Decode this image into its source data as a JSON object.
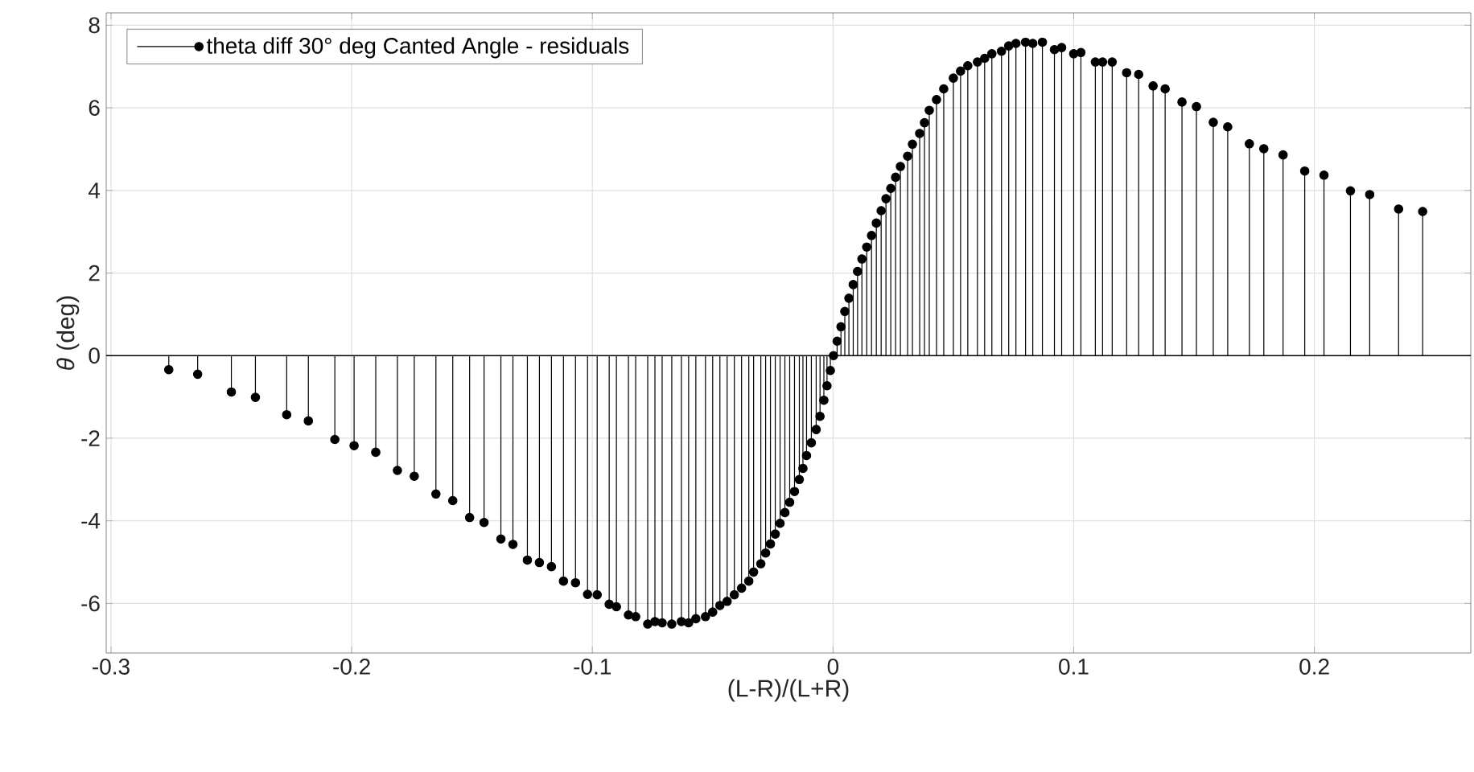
{
  "chart_data": {
    "type": "lollipop",
    "xlabel": "(L-R)/(L+R)",
    "ylabel": "*θ* (deg)",
    "xlim": [
      -0.302,
      0.265
    ],
    "ylim": [
      -7.2,
      8.3
    ],
    "xticks": [
      -0.3,
      -0.2,
      -0.1,
      0,
      0.1,
      0.2
    ],
    "yticks": [
      -6,
      -4,
      -2,
      0,
      2,
      4,
      6,
      8
    ],
    "grid": true,
    "legend": "top left",
    "marker": "circle",
    "x": [
      -0.276,
      -0.264,
      -0.25,
      -0.24,
      -0.227,
      -0.218,
      -0.207,
      -0.199,
      -0.19,
      -0.181,
      -0.174,
      -0.165,
      -0.158,
      -0.151,
      -0.145,
      -0.138,
      -0.133,
      -0.127,
      -0.122,
      -0.117,
      -0.112,
      -0.107,
      -0.102,
      -0.098,
      -0.093,
      -0.09,
      -0.085,
      -0.082,
      -0.077,
      -0.074,
      -0.071,
      -0.067,
      -0.063,
      -0.06,
      -0.057,
      -0.053,
      -0.05,
      -0.047,
      -0.044,
      -0.041,
      -0.038,
      -0.035,
      -0.033,
      -0.03,
      -0.028,
      -0.026,
      -0.024,
      -0.022,
      -0.02,
      -0.018,
      -0.016,
      -0.014,
      -0.0125,
      -0.011,
      -0.009,
      -0.007,
      -0.0054,
      -0.0038,
      -0.0025,
      -0.0011,
      0.0002,
      0.0017,
      0.0033,
      0.0049,
      0.0066,
      0.0084,
      0.0102,
      0.012,
      0.014,
      0.016,
      0.018,
      0.02,
      0.022,
      0.024,
      0.026,
      0.028,
      0.031,
      0.033,
      0.036,
      0.038,
      0.04,
      0.043,
      0.046,
      0.05,
      0.053,
      0.056,
      0.06,
      0.063,
      0.066,
      0.07,
      0.073,
      0.076,
      0.08,
      0.083,
      0.087,
      0.092,
      0.095,
      0.1,
      0.103,
      0.109,
      0.112,
      0.116,
      0.122,
      0.127,
      0.133,
      0.138,
      0.145,
      0.151,
      0.158,
      0.164,
      0.173,
      0.179,
      0.187,
      0.196,
      0.204,
      0.215,
      0.223,
      0.235,
      0.245
    ],
    "series": [
      {
        "name": "theta diff 30° deg Canted Angle - residuals",
        "color": "#000000",
        "values": [
          -0.34,
          -0.45,
          -0.88,
          -1.01,
          -1.43,
          -1.58,
          -2.03,
          -2.18,
          -2.34,
          -2.78,
          -2.92,
          -3.35,
          -3.51,
          -3.92,
          -4.04,
          -4.44,
          -4.57,
          -4.95,
          -5.01,
          -5.11,
          -5.46,
          -5.5,
          -5.78,
          -5.79,
          -6.02,
          -6.08,
          -6.28,
          -6.32,
          -6.5,
          -6.44,
          -6.47,
          -6.5,
          -6.44,
          -6.47,
          -6.37,
          -6.32,
          -6.21,
          -6.05,
          -5.95,
          -5.79,
          -5.63,
          -5.46,
          -5.24,
          -5.04,
          -4.78,
          -4.56,
          -4.32,
          -4.06,
          -3.8,
          -3.55,
          -3.29,
          -3.0,
          -2.73,
          -2.42,
          -2.11,
          -1.79,
          -1.47,
          -1.08,
          -0.73,
          -0.36,
          0.0,
          0.35,
          0.7,
          1.07,
          1.39,
          1.72,
          2.04,
          2.34,
          2.63,
          2.91,
          3.21,
          3.51,
          3.8,
          4.05,
          4.32,
          4.58,
          4.83,
          5.12,
          5.38,
          5.64,
          5.94,
          6.2,
          6.46,
          6.72,
          6.89,
          7.02,
          7.11,
          7.2,
          7.31,
          7.37,
          7.5,
          7.56,
          7.59,
          7.56,
          7.59,
          7.41,
          7.46,
          7.31,
          7.34,
          7.11,
          7.11,
          7.11,
          6.85,
          6.81,
          6.53,
          6.46,
          6.14,
          6.03,
          5.65,
          5.54,
          5.13,
          5.01,
          4.86,
          4.47,
          4.37,
          3.99,
          3.9,
          3.55,
          3.49
        ]
      }
    ]
  }
}
